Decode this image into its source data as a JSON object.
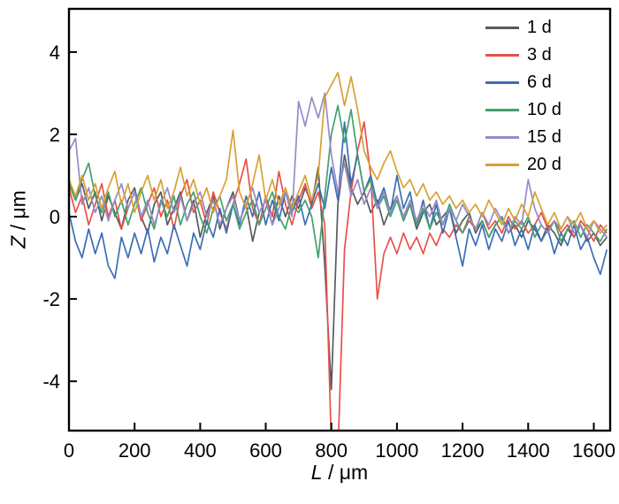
{
  "chart_data": {
    "type": "line",
    "title": "",
    "xlabel": {
      "var": "L",
      "unit": " / μm"
    },
    "ylabel": {
      "var": "Z",
      "unit": " / μm"
    },
    "x_ticks": [
      0,
      200,
      400,
      600,
      800,
      1000,
      1200,
      1400,
      1600
    ],
    "y_ticks": [
      -4,
      -2,
      0,
      2,
      4
    ],
    "xlim": [
      0,
      1650
    ],
    "ylim": [
      -5.2,
      5.05
    ],
    "x_step": 20,
    "grid": false,
    "legend_position": "top-right",
    "axis_color": "#000000",
    "series": [
      {
        "name": "1 d",
        "color": "#585a5d",
        "values": [
          0.9,
          0.4,
          0.8,
          0.2,
          0.6,
          -0.1,
          0.5,
          0.1,
          -0.3,
          0.4,
          0.7,
          0.0,
          -0.4,
          0.3,
          0.6,
          -0.2,
          0.2,
          0.6,
          -0.1,
          0.4,
          -0.5,
          0.1,
          0.5,
          -0.3,
          0.2,
          0.6,
          -0.1,
          0.3,
          -0.6,
          0.1,
          0.4,
          -0.2,
          0.5,
          0.0,
          0.5,
          0.2,
          0.7,
          0.3,
          1.2,
          -1.2,
          -4.2,
          0.3,
          1.5,
          0.7,
          0.3,
          0.6,
          0.1,
          0.4,
          -0.2,
          0.2,
          0.5,
          -0.1,
          0.3,
          -0.3,
          0.1,
          0.3,
          -0.2,
          0.0,
          0.2,
          -0.4,
          -0.1,
          0.1,
          -0.4,
          -0.1,
          -0.5,
          -0.2,
          0.0,
          -0.4,
          -0.2,
          -0.5,
          -0.1,
          -0.3,
          -0.6,
          -0.2,
          -0.4,
          -0.7,
          -0.3,
          -0.5,
          -0.2,
          -0.6,
          -0.4,
          -0.7,
          -0.5
        ]
      },
      {
        "name": "3 d",
        "color": "#e75149",
        "values": [
          0.7,
          0.1,
          0.5,
          -0.2,
          0.3,
          0.8,
          0.0,
          0.4,
          -0.3,
          0.2,
          0.6,
          -0.1,
          0.3,
          0.7,
          0.0,
          0.4,
          -0.3,
          0.5,
          0.9,
          0.1,
          0.4,
          -0.2,
          0.6,
          0.1,
          -0.3,
          0.3,
          0.8,
          1.4,
          0.2,
          -0.2,
          0.5,
          0.0,
          1.1,
          0.3,
          -0.2,
          0.4,
          0.8,
          0.2,
          0.6,
          -0.2,
          -5.5,
          -5.8,
          -0.8,
          0.6,
          1.6,
          2.3,
          1.0,
          -2.0,
          -0.9,
          -0.5,
          -0.9,
          -0.4,
          -0.8,
          -0.5,
          -0.9,
          -0.4,
          -0.7,
          -0.3,
          -0.5,
          -0.2,
          -0.4,
          -0.1,
          -0.3,
          0.1,
          -0.3,
          -0.1,
          -0.4,
          0.0,
          -0.3,
          -0.1,
          -0.4,
          -0.2,
          0.1,
          -0.3,
          -0.1,
          -0.4,
          -0.2,
          -0.5,
          -0.1,
          -0.3,
          -0.6,
          -0.2,
          -0.4
        ]
      },
      {
        "name": "6 d",
        "color": "#3b6eb5",
        "values": [
          0.1,
          -0.6,
          -1.0,
          -0.3,
          -0.9,
          -0.4,
          -1.2,
          -1.5,
          -0.5,
          -1.0,
          -0.4,
          -0.9,
          -0.3,
          -1.1,
          -0.5,
          -0.9,
          -0.2,
          -0.7,
          -1.2,
          -0.4,
          -0.8,
          -0.1,
          -0.5,
          0.2,
          -0.4,
          0.3,
          -0.2,
          0.5,
          0.0,
          0.6,
          -0.2,
          0.4,
          -0.1,
          0.6,
          0.1,
          0.5,
          -0.2,
          0.3,
          0.8,
          0.2,
          1.2,
          0.4,
          2.3,
          0.8,
          1.5,
          0.6,
          1.0,
          0.3,
          0.7,
          0.1,
          1.0,
          0.2,
          0.6,
          -0.2,
          0.4,
          -0.3,
          0.3,
          -0.4,
          0.2,
          -0.5,
          -1.2,
          -0.3,
          -0.7,
          -0.2,
          -0.8,
          -0.3,
          -0.6,
          -0.1,
          -0.7,
          -0.3,
          -0.8,
          -0.2,
          -0.6,
          -0.3,
          -0.9,
          -0.4,
          -0.7,
          -0.2,
          -0.8,
          -0.5,
          -1.0,
          -1.4,
          -0.8
        ]
      },
      {
        "name": "10 d",
        "color": "#42a16c",
        "values": [
          0.8,
          0.4,
          0.9,
          1.3,
          0.5,
          0.1,
          0.6,
          0.0,
          0.4,
          -0.2,
          0.3,
          0.7,
          0.1,
          -0.3,
          0.4,
          0.0,
          0.5,
          -0.2,
          0.3,
          0.6,
          0.0,
          -0.4,
          0.2,
          0.5,
          -0.1,
          0.3,
          -0.3,
          0.1,
          0.4,
          -0.2,
          0.2,
          0.6,
          0.0,
          -0.3,
          0.3,
          0.1,
          0.4,
          0.0,
          -1.0,
          0.5,
          2.0,
          2.7,
          1.8,
          2.6,
          1.5,
          0.6,
          0.9,
          0.2,
          0.5,
          0.0,
          0.4,
          -0.1,
          0.3,
          -0.2,
          0.2,
          -0.3,
          0.1,
          -0.2,
          0.3,
          -0.1,
          -0.4,
          0.0,
          -0.3,
          -0.1,
          -0.5,
          -0.2,
          0.0,
          -0.4,
          -0.1,
          -0.3,
          0.0,
          -0.5,
          -0.2,
          -0.4,
          -0.1,
          -0.6,
          -0.3,
          -0.1,
          -0.5,
          -0.2,
          -0.4,
          -0.6,
          -0.3
        ]
      },
      {
        "name": "15 d",
        "color": "#968bc8",
        "values": [
          1.6,
          1.9,
          0.3,
          0.7,
          0.1,
          0.5,
          -0.1,
          0.4,
          0.8,
          0.2,
          0.6,
          0.0,
          0.4,
          -0.2,
          0.3,
          0.7,
          0.1,
          0.5,
          -0.1,
          0.3,
          0.6,
          0.0,
          0.4,
          -0.2,
          0.2,
          0.5,
          -0.1,
          0.3,
          0.7,
          0.1,
          0.4,
          -0.2,
          0.2,
          0.6,
          0.0,
          2.8,
          2.2,
          2.9,
          2.4,
          3.0,
          1.5,
          0.6,
          1.3,
          0.5,
          0.9,
          0.3,
          0.7,
          0.2,
          0.6,
          0.1,
          0.5,
          0.0,
          0.4,
          -0.1,
          0.3,
          0.0,
          0.4,
          -0.2,
          0.2,
          -0.1,
          0.3,
          0.0,
          -0.3,
          0.1,
          -0.2,
          0.2,
          -0.1,
          -0.4,
          0.0,
          -0.2,
          0.9,
          0.2,
          -0.2,
          -0.4,
          -0.1,
          -0.3,
          0.0,
          -0.4,
          -0.2,
          -0.5,
          -0.1,
          -0.3,
          -0.5
        ]
      },
      {
        "name": "20 d",
        "color": "#d8a133",
        "values": [
          0.9,
          0.5,
          1.0,
          0.4,
          0.8,
          0.2,
          0.7,
          1.1,
          0.3,
          0.8,
          0.1,
          0.6,
          1.0,
          0.4,
          0.9,
          0.2,
          0.6,
          1.2,
          0.5,
          0.9,
          0.3,
          0.7,
          0.1,
          0.5,
          0.9,
          2.1,
          0.6,
          0.2,
          0.8,
          1.5,
          0.4,
          0.9,
          0.3,
          0.7,
          0.2,
          0.6,
          1.0,
          0.4,
          1.0,
          2.9,
          3.2,
          3.5,
          2.7,
          3.4,
          2.6,
          1.6,
          1.2,
          0.9,
          1.3,
          1.6,
          1.1,
          0.7,
          0.9,
          0.5,
          0.8,
          0.4,
          0.6,
          0.3,
          0.5,
          0.2,
          0.4,
          0.1,
          0.3,
          0.0,
          0.4,
          0.1,
          -0.2,
          0.2,
          -0.1,
          0.3,
          0.0,
          0.6,
          0.2,
          -0.2,
          0.1,
          -0.3,
          0.0,
          -0.2,
          0.1,
          -0.3,
          -0.1,
          -0.4,
          -0.2
        ]
      }
    ]
  }
}
